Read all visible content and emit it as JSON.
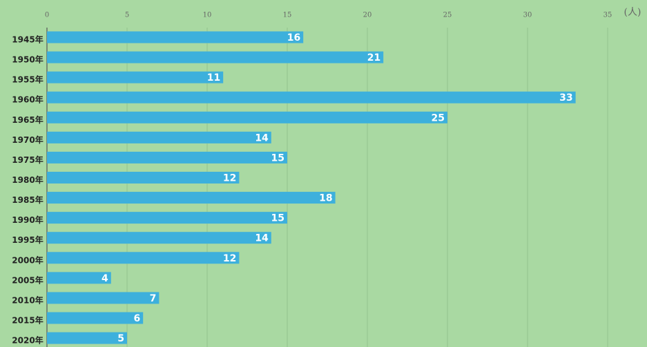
{
  "chart_data": {
    "type": "bar",
    "orientation": "horizontal",
    "x_label": "(人)",
    "categories": [
      "1945年",
      "1950年",
      "1955年",
      "1960年",
      "1965年",
      "1970年",
      "1975年",
      "1980年",
      "1985年",
      "1990年",
      "1995年",
      "2000年",
      "2005年",
      "2010年",
      "2015年",
      "2020年"
    ],
    "values": [
      16,
      21,
      11,
      33,
      25,
      14,
      15,
      12,
      18,
      15,
      14,
      12,
      4,
      7,
      6,
      5
    ],
    "color": "#3db0dc",
    "xlim": [
      0,
      37
    ],
    "xticks": [
      0,
      5,
      10,
      15,
      20,
      25,
      30,
      35
    ],
    "grid": true
  }
}
